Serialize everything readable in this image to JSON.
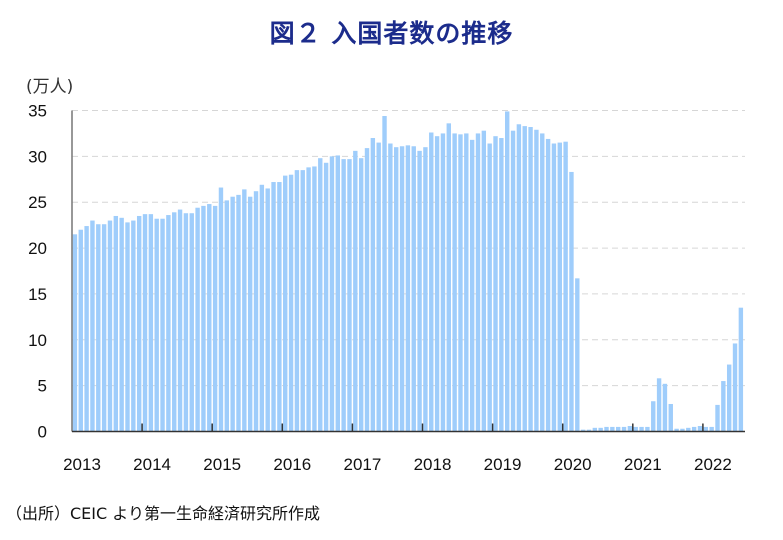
{
  "chart_data": {
    "type": "bar",
    "title": "図２ 入国者数の推移",
    "ylabel": "(万人)",
    "xlabel": "",
    "ylim": [
      0,
      35
    ],
    "yticks": [
      "0",
      "5",
      "10",
      "15",
      "20",
      "25",
      "30",
      "35"
    ],
    "xtick_labels": [
      "2013",
      "2014",
      "2015",
      "2016",
      "2017",
      "2018",
      "2019",
      "2020",
      "2021",
      "2022"
    ],
    "grid": "horizontal dashed",
    "bar_color": "#9fcdfb",
    "frequency": "monthly",
    "start": "2013-01",
    "end": "2022-07",
    "values": [
      21.5,
      22.0,
      22.4,
      23.0,
      22.6,
      22.6,
      23.0,
      23.5,
      23.3,
      22.8,
      23.0,
      23.5,
      23.7,
      23.7,
      23.2,
      23.2,
      23.6,
      23.9,
      24.2,
      23.8,
      23.8,
      24.4,
      24.6,
      24.8,
      24.6,
      26.6,
      25.2,
      25.6,
      25.8,
      26.4,
      25.6,
      26.2,
      26.9,
      26.5,
      27.2,
      27.2,
      27.9,
      28.0,
      28.5,
      28.5,
      28.8,
      28.9,
      29.8,
      29.3,
      30.0,
      30.1,
      29.7,
      29.7,
      30.6,
      29.8,
      30.9,
      32.0,
      31.5,
      34.4,
      31.4,
      31.0,
      31.1,
      31.2,
      31.1,
      30.6,
      31.0,
      32.6,
      32.2,
      32.5,
      33.6,
      32.5,
      32.4,
      32.5,
      31.8,
      32.5,
      32.8,
      31.4,
      32.2,
      32.0,
      34.9,
      32.8,
      33.5,
      33.3,
      33.2,
      32.9,
      32.5,
      31.9,
      31.4,
      31.5,
      31.6,
      28.3,
      16.7,
      0.2,
      0.2,
      0.4,
      0.4,
      0.5,
      0.5,
      0.5,
      0.5,
      0.6,
      0.5,
      0.5,
      0.5,
      3.3,
      5.8,
      5.2,
      3.0,
      0.3,
      0.3,
      0.4,
      0.5,
      0.6,
      0.5,
      0.5,
      2.9,
      5.5,
      7.3,
      9.6,
      13.5
    ]
  },
  "source": "（出所）CEIC より第一生命経済研究所作成"
}
